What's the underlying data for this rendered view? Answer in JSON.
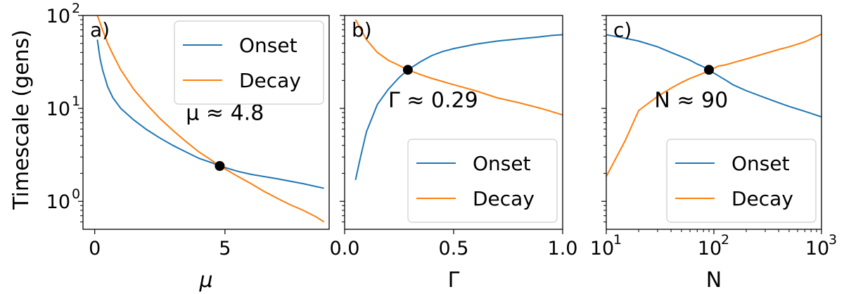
{
  "figure": {
    "ylabel": "Timescale (gens)",
    "colors": {
      "onset": "#1f77b4",
      "decay": "#ff7f0e",
      "marker": "#000000"
    }
  },
  "chart_data": [
    {
      "type": "line",
      "panel_label": "a)",
      "xlabel": "μ",
      "ylabel": "Timescale (gens)",
      "xscale": "linear",
      "yscale": "log",
      "xlim": [
        -0.45,
        9.0
      ],
      "ylim": [
        0.5,
        100
      ],
      "xticks": [
        0,
        5
      ],
      "xtick_labels": [
        "0",
        "5"
      ],
      "yticks": [
        1,
        10,
        100
      ],
      "ytick_labels": [
        "10",
        "10",
        "10"
      ],
      "ytick_exps": [
        "0",
        "1",
        "2"
      ],
      "legend": {
        "position": "upper-right",
        "entries": [
          "Onset",
          "Decay"
        ]
      },
      "annotation": {
        "text": "μ ≈ 4.8",
        "x": 3.5,
        "y": 7.5
      },
      "marker": {
        "x": 4.8,
        "y": 2.4
      },
      "series": [
        {
          "name": "Onset",
          "color": "#1f77b4",
          "x": [
            0.1,
            0.2,
            0.3,
            0.4,
            0.5,
            0.7,
            1.0,
            1.5,
            2.0,
            2.5,
            3.0,
            3.5,
            4.0,
            4.5,
            4.8,
            5.5,
            6.0,
            7.0,
            8.0,
            8.8
          ],
          "y": [
            55,
            35,
            26,
            21,
            17,
            13,
            10,
            7.5,
            5.9,
            4.8,
            4.0,
            3.4,
            2.9,
            2.6,
            2.4,
            2.1,
            1.95,
            1.75,
            1.55,
            1.38
          ]
        },
        {
          "name": "Decay",
          "color": "#ff7f0e",
          "x": [
            0.1,
            0.3,
            0.5,
            0.7,
            1.0,
            1.5,
            2.0,
            2.5,
            3.0,
            3.5,
            4.0,
            4.5,
            4.8,
            5.5,
            6.0,
            6.5,
            7.0,
            7.5,
            8.0,
            8.5,
            8.8
          ],
          "y": [
            100,
            70,
            50,
            38,
            26,
            16,
            11,
            7.8,
            5.8,
            4.4,
            3.4,
            2.75,
            2.4,
            1.85,
            1.55,
            1.28,
            1.08,
            0.92,
            0.8,
            0.68,
            0.6
          ]
        }
      ]
    },
    {
      "type": "line",
      "panel_label": "b)",
      "xlabel": "Γ",
      "xscale": "linear",
      "yscale": "log",
      "xlim": [
        0.0,
        1.0
      ],
      "ylim": [
        0.5,
        100
      ],
      "xticks": [
        0.0,
        0.5,
        1.0
      ],
      "xtick_labels": [
        "0.0",
        "0.5",
        "1.0"
      ],
      "yticks": [
        1,
        10,
        100
      ],
      "legend": {
        "position": "lower-right",
        "entries": [
          "Onset",
          "Decay"
        ]
      },
      "annotation": {
        "text": "Γ ≈ 0.29",
        "x": 0.2,
        "y": 10.3
      },
      "marker": {
        "x": 0.29,
        "y": 26
      },
      "series": [
        {
          "name": "Onset",
          "color": "#1f77b4",
          "x": [
            0.05,
            0.07,
            0.1,
            0.15,
            0.2,
            0.25,
            0.29,
            0.35,
            0.4,
            0.45,
            0.5,
            0.6,
            0.7,
            0.8,
            0.9,
            0.95,
            1.0
          ],
          "y": [
            1.7,
            2.8,
            5.6,
            11,
            16,
            21.5,
            26,
            32,
            37,
            41,
            44,
            49,
            53,
            56,
            59,
            61,
            62
          ]
        },
        {
          "name": "Decay",
          "color": "#ff7f0e",
          "x": [
            0.05,
            0.1,
            0.15,
            0.2,
            0.25,
            0.29,
            0.35,
            0.4,
            0.5,
            0.6,
            0.7,
            0.8,
            0.9,
            1.0
          ],
          "y": [
            90,
            55,
            40,
            33,
            29,
            26,
            23,
            21,
            18,
            15.5,
            13,
            11.5,
            10,
            8.5
          ]
        }
      ]
    },
    {
      "type": "line",
      "panel_label": "c)",
      "xlabel": "N",
      "xscale": "log",
      "yscale": "log",
      "xlim": [
        10,
        1000
      ],
      "ylim": [
        0.5,
        100
      ],
      "xticks": [
        10,
        100,
        1000
      ],
      "xtick_labels": [
        "10",
        "10",
        "10"
      ],
      "xtick_exps": [
        "1",
        "2",
        "3"
      ],
      "yticks": [
        1,
        10,
        100
      ],
      "legend": {
        "position": "lower-right",
        "entries": [
          "Onset",
          "Decay"
        ]
      },
      "annotation": {
        "text": "N  ≈ 90",
        "x": 28,
        "y": 10.3
      },
      "marker": {
        "x": 90,
        "y": 26
      },
      "series": [
        {
          "name": "Onset",
          "color": "#1f77b4",
          "x": [
            10,
            15,
            20,
            30,
            40,
            50,
            60,
            70,
            80,
            90,
            100,
            130,
            150,
            200,
            300,
            400,
            500,
            700,
            1000
          ],
          "y": [
            62,
            57,
            53,
            46,
            40,
            36,
            33,
            30,
            28,
            26,
            24,
            20,
            18,
            15.5,
            13,
            11.5,
            10.5,
            9.3,
            8.1
          ]
        },
        {
          "name": "Decay",
          "color": "#ff7f0e",
          "x": [
            10,
            15,
            20,
            30,
            40,
            50,
            60,
            70,
            80,
            90,
            100,
            110,
            130,
            150,
            200,
            300,
            400,
            500,
            700,
            1000
          ],
          "y": [
            1.85,
            4.5,
            9.5,
            13.5,
            16.5,
            19,
            21,
            22.5,
            24,
            25,
            27,
            28.5,
            29.5,
            31,
            34,
            39,
            43,
            46,
            52,
            63
          ]
        }
      ]
    }
  ]
}
